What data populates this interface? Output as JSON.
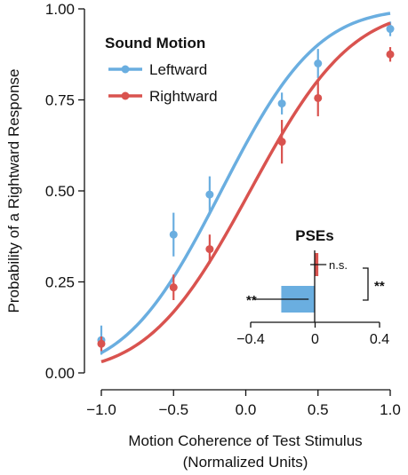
{
  "chart_data": {
    "type": "line",
    "xlabel_line1": "Motion Coherence of Test Stimulus",
    "xlabel_line2": "(Normalized Units)",
    "ylabel": "Probability of a Rightward Response",
    "xlim": [
      -1.0,
      1.0
    ],
    "ylim": [
      0.0,
      1.0
    ],
    "x_ticks": [
      "−1.0",
      "−0.5",
      "0.0",
      "0.5",
      "1.0"
    ],
    "y_ticks": [
      "0.00",
      "0.25",
      "0.50",
      "0.75",
      "1.00"
    ],
    "x_tick_values": [
      -1.0,
      -0.5,
      0.0,
      0.5,
      1.0
    ],
    "y_tick_values": [
      0.0,
      0.25,
      0.5,
      0.75,
      1.0
    ],
    "legend": {
      "title": "Sound Motion",
      "placement": "top-left"
    },
    "series": [
      {
        "name": "Leftward",
        "color": "#6aaee0",
        "x": [
          -1.0,
          -0.5,
          -0.25,
          0.25,
          0.5,
          1.0
        ],
        "y": [
          0.09,
          0.38,
          0.49,
          0.74,
          0.85,
          0.945
        ],
        "err": [
          0.04,
          0.06,
          0.05,
          0.03,
          0.04,
          0.02
        ],
        "fit": {
          "mu": -0.17,
          "sigma": 0.52
        }
      },
      {
        "name": "Rightward",
        "color": "#d9534f",
        "x": [
          -1.0,
          -0.5,
          -0.25,
          0.25,
          0.5,
          1.0
        ],
        "y": [
          0.08,
          0.235,
          0.34,
          0.635,
          0.755,
          0.875
        ],
        "err": [
          0.02,
          0.035,
          0.04,
          0.06,
          0.05,
          0.02
        ],
        "fit": {
          "mu": 0.03,
          "sigma": 0.55
        }
      }
    ],
    "inset": {
      "title": "PSEs",
      "type": "bar",
      "xlim": [
        -0.4,
        0.4
      ],
      "x_ticks": [
        "−0.4",
        "0",
        "0.4"
      ],
      "x_tick_values": [
        -0.4,
        0.0,
        0.4
      ],
      "bars": [
        {
          "name": "Leftward",
          "value": -0.21,
          "err": 0.17,
          "color": "#6aaee0",
          "annotation": "**"
        },
        {
          "name": "Rightward",
          "value": 0.02,
          "err": 0.05,
          "color": "#d9534f",
          "annotation": "n.s."
        }
      ],
      "comparison_annotation": "**"
    }
  }
}
